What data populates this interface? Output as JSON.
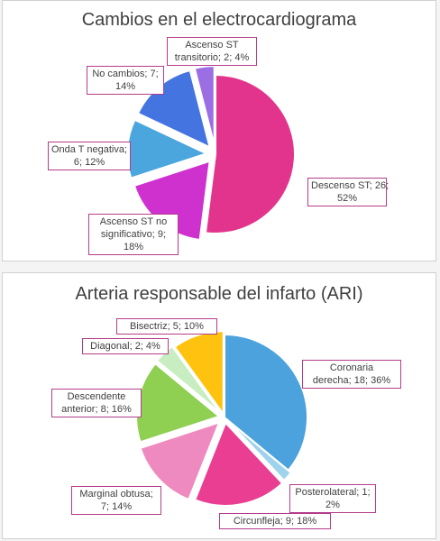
{
  "chart_data": [
    {
      "type": "pie",
      "title": "Cambios en el electrocardiograma",
      "slices": [
        {
          "name": "Descenso ST",
          "value": 26,
          "percent": "52%",
          "label_lines": [
            "Descenso ST; 26;",
            "52%"
          ],
          "color": "#e2348c"
        },
        {
          "name": "Ascenso ST no significativo",
          "value": 9,
          "percent": "18%",
          "label_lines": [
            "Ascenso ST no",
            "significativo; 9;",
            "18%"
          ],
          "color": "#cf31cf"
        },
        {
          "name": "Onda T negativa",
          "value": 6,
          "percent": "12%",
          "label_lines": [
            "Onda T negativa;",
            "6; 12%"
          ],
          "color": "#4aa6dd"
        },
        {
          "name": "No cambios",
          "value": 7,
          "percent": "14%",
          "label_lines": [
            "No cambios; 7;",
            "14%"
          ],
          "color": "#4374e0"
        },
        {
          "name": "Ascenso ST transitorio",
          "value": 2,
          "percent": "4%",
          "label_lines": [
            "Ascenso ST",
            "transitorio; 2; 4%"
          ],
          "color": "#9b6fe3"
        }
      ]
    },
    {
      "type": "pie",
      "title": "Arteria responsable del infarto (ARI)",
      "slices": [
        {
          "name": "Coronaria derecha",
          "value": 18,
          "percent": "36%",
          "label_lines": [
            "Coronaria",
            "derecha; 18; 36%"
          ],
          "color": "#4ca2dc"
        },
        {
          "name": "Posterolateral",
          "value": 1,
          "percent": "2%",
          "label_lines": [
            "Posterolateral; 1;",
            "2%"
          ],
          "color": "#9fd3ec"
        },
        {
          "name": "Circunfleja",
          "value": 9,
          "percent": "18%",
          "label_lines": [
            "Circunfleja; 9; 18%"
          ],
          "color": "#e93e91"
        },
        {
          "name": "Marginal obtusa",
          "value": 7,
          "percent": "14%",
          "label_lines": [
            "Marginal obtusa;",
            "7; 14%"
          ],
          "color": "#ef8ac0"
        },
        {
          "name": "Descendente anterior",
          "value": 8,
          "percent": "16%",
          "label_lines": [
            "Descendente",
            "anterior; 8; 16%"
          ],
          "color": "#8fd053"
        },
        {
          "name": "Diagonal",
          "value": 2,
          "percent": "4%",
          "label_lines": [
            "Diagonal; 2; 4%"
          ],
          "color": "#c7edc0"
        },
        {
          "name": "Bisectriz",
          "value": 5,
          "percent": "10%",
          "label_lines": [
            "Bisectriz; 5; 10%"
          ],
          "color": "#ffc20e"
        }
      ]
    }
  ]
}
